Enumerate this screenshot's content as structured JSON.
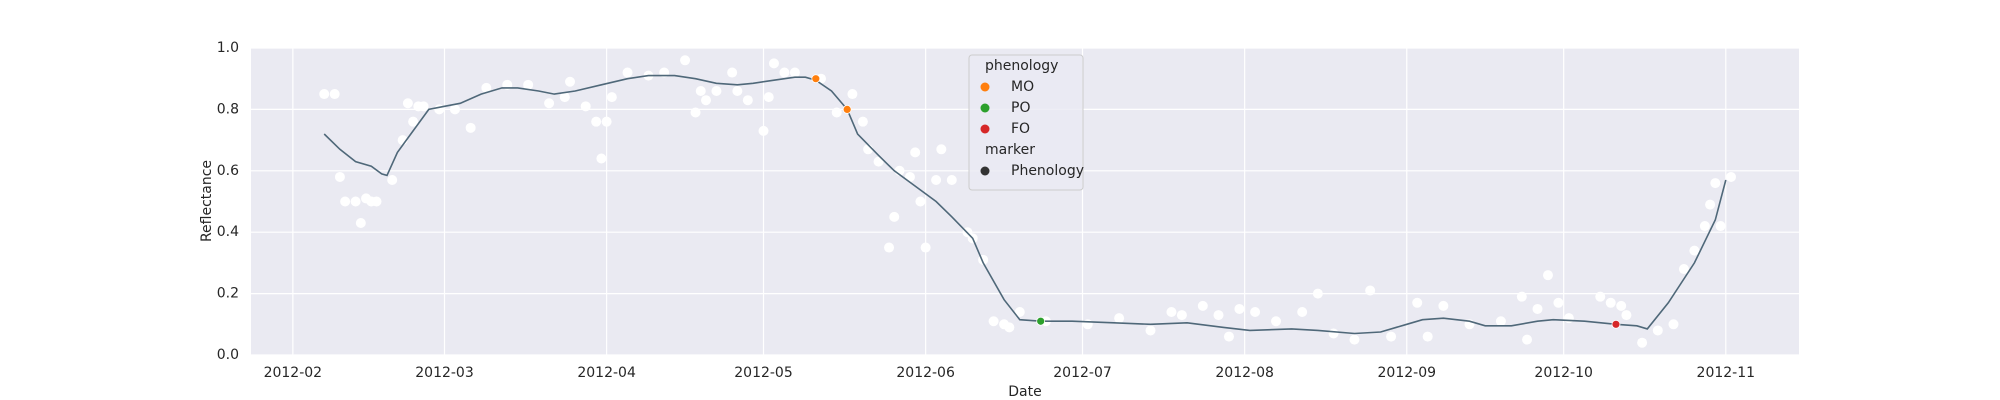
{
  "chart_data": {
    "type": "scatter",
    "x_label": "Date",
    "y_label": "Reflectance",
    "xlim": [
      24,
      320
    ],
    "ylim": [
      0,
      1
    ],
    "xticks": [
      {
        "value": 32,
        "label": "2012-02"
      },
      {
        "value": 61,
        "label": "2012-03"
      },
      {
        "value": 92,
        "label": "2012-04"
      },
      {
        "value": 122,
        "label": "2012-05"
      },
      {
        "value": 153,
        "label": "2012-06"
      },
      {
        "value": 183,
        "label": "2012-07"
      },
      {
        "value": 214,
        "label": "2012-08"
      },
      {
        "value": 245,
        "label": "2012-09"
      },
      {
        "value": 275,
        "label": "2012-10"
      },
      {
        "value": 306,
        "label": "2012-11"
      }
    ],
    "yticks": [
      {
        "value": 0,
        "label": "0.0"
      },
      0.2,
      0.4,
      0.6,
      0.8,
      {
        "value": 1,
        "label": "1.0"
      }
    ],
    "grid": true,
    "legend_title": "phenology",
    "marker_title": "marker",
    "marker_label": "Phenology",
    "marker_color": "#333333",
    "series": [
      {
        "type": "scatter",
        "color": "#ffffff",
        "x": [
          38,
          40,
          41,
          42,
          44,
          45,
          46,
          47,
          48,
          51,
          53,
          54,
          55,
          56,
          57,
          60,
          63,
          66,
          69,
          73,
          77,
          81,
          84,
          85,
          88,
          90,
          91,
          92,
          93,
          96,
          100,
          103,
          107,
          109,
          110,
          111,
          113,
          116,
          117,
          119,
          122,
          123,
          124,
          126,
          128,
          133,
          136,
          139,
          141,
          142,
          144,
          146,
          147,
          148,
          150,
          151,
          152,
          153,
          155,
          156,
          158,
          161,
          162,
          164,
          166,
          168,
          169,
          171,
          176,
          184,
          190,
          196,
          200,
          202,
          206,
          209,
          211,
          213,
          216,
          220,
          225,
          228,
          231,
          235,
          238,
          242,
          247,
          249,
          252,
          257,
          263,
          267,
          268,
          270,
          272,
          274,
          276,
          282,
          284,
          286,
          287,
          290,
          293,
          296,
          298,
          300,
          302,
          303,
          304,
          305,
          307
        ],
        "values": [
          0.85,
          0.85,
          0.58,
          0.5,
          0.5,
          0.43,
          0.51,
          0.5,
          0.5,
          0.57,
          0.7,
          0.82,
          0.76,
          0.81,
          0.81,
          0.8,
          0.8,
          0.74,
          0.87,
          0.88,
          0.88,
          0.82,
          0.84,
          0.89,
          0.81,
          0.76,
          0.64,
          0.76,
          0.84,
          0.92,
          0.91,
          0.92,
          0.96,
          0.79,
          0.86,
          0.83,
          0.86,
          0.92,
          0.86,
          0.83,
          0.73,
          0.84,
          0.95,
          0.92,
          0.92,
          0.9,
          0.79,
          0.85,
          0.76,
          0.67,
          0.63,
          0.35,
          0.45,
          0.6,
          0.58,
          0.66,
          0.5,
          0.35,
          0.57,
          0.67,
          0.57,
          0.4,
          0.38,
          0.31,
          0.11,
          0.1,
          0.09,
          0.14,
          0.11,
          0.1,
          0.12,
          0.08,
          0.14,
          0.13,
          0.16,
          0.13,
          0.06,
          0.15,
          0.14,
          0.11,
          0.14,
          0.2,
          0.07,
          0.05,
          0.21,
          0.06,
          0.17,
          0.06,
          0.16,
          0.1,
          0.11,
          0.19,
          0.05,
          0.15,
          0.26,
          0.17,
          0.12,
          0.19,
          0.17,
          0.16,
          0.13,
          0.04,
          0.08,
          0.1,
          0.28,
          0.34,
          0.42,
          0.49,
          0.56,
          0.42,
          0.58
        ]
      },
      {
        "type": "line",
        "color": "#4f6879",
        "x": [
          38,
          41,
          44,
          47,
          49,
          50,
          52,
          55,
          58,
          61,
          64,
          68,
          72,
          75,
          79,
          82,
          86,
          91,
          96,
          100,
          105,
          109,
          113,
          117,
          120,
          124,
          128,
          130,
          132,
          135,
          138,
          140,
          144,
          147,
          151,
          155,
          158,
          162,
          164,
          168,
          171,
          175,
          181,
          189,
          196,
          203,
          210,
          215,
          223,
          228,
          235,
          240,
          245,
          248,
          252,
          257,
          260,
          265,
          270,
          273,
          279,
          285,
          289,
          291,
          295,
          300,
          304,
          306
        ],
        "values": [
          0.72,
          0.67,
          0.63,
          0.615,
          0.59,
          0.585,
          0.66,
          0.73,
          0.8,
          0.81,
          0.82,
          0.85,
          0.87,
          0.87,
          0.86,
          0.85,
          0.86,
          0.88,
          0.9,
          0.91,
          0.91,
          0.9,
          0.885,
          0.88,
          0.885,
          0.895,
          0.905,
          0.905,
          0.895,
          0.86,
          0.8,
          0.72,
          0.65,
          0.6,
          0.55,
          0.5,
          0.45,
          0.38,
          0.3,
          0.18,
          0.115,
          0.11,
          0.11,
          0.105,
          0.1,
          0.105,
          0.09,
          0.08,
          0.085,
          0.08,
          0.07,
          0.075,
          0.1,
          0.115,
          0.12,
          0.11,
          0.095,
          0.095,
          0.11,
          0.115,
          0.11,
          0.1,
          0.095,
          0.085,
          0.17,
          0.3,
          0.44,
          0.57
        ]
      },
      {
        "type": "scatter",
        "name": "MO",
        "color": "#ff7f0e",
        "x": [
          132,
          138
        ],
        "values": [
          0.9,
          0.8
        ]
      },
      {
        "type": "scatter",
        "name": "PO",
        "color": "#2ca02c",
        "x": [
          175
        ],
        "values": [
          0.11
        ]
      },
      {
        "type": "scatter",
        "name": "FO",
        "color": "#d62728",
        "x": [
          285
        ],
        "values": [
          0.1
        ]
      }
    ]
  }
}
